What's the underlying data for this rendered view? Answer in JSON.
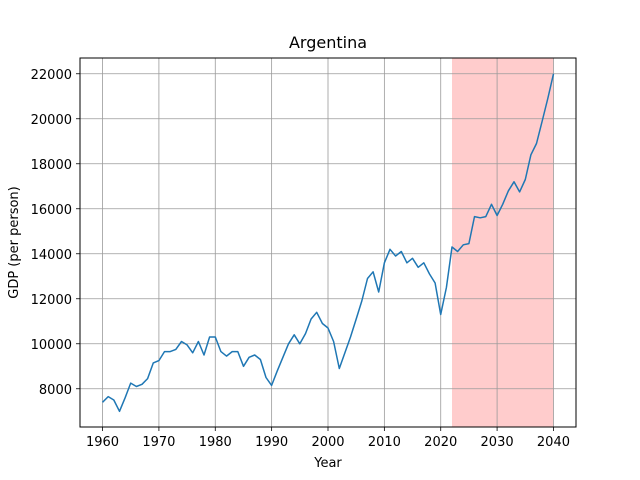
{
  "chart_data": {
    "type": "line",
    "title": "Argentina",
    "xlabel": "Year",
    "ylabel": "GDP (per person)",
    "xlim": [
      1956,
      2044
    ],
    "ylim": [
      6300,
      22700
    ],
    "xticks": [
      1960,
      1970,
      1980,
      1990,
      2000,
      2010,
      2020,
      2030,
      2040
    ],
    "yticks": [
      8000,
      10000,
      12000,
      14000,
      16000,
      18000,
      20000,
      22000
    ],
    "grid": true,
    "line_color": "#1f77b4",
    "forecast_region": {
      "x_start": 2022,
      "x_end": 2040,
      "color": "#ffcccc"
    },
    "series": [
      {
        "x": [
          1960,
          1961,
          1962,
          1963,
          1964,
          1965,
          1966,
          1967,
          1968,
          1969,
          1970,
          1971,
          1972,
          1973,
          1974,
          1975,
          1976,
          1977,
          1978,
          1979,
          1980,
          1981,
          1982,
          1983,
          1984,
          1985,
          1986,
          1987,
          1988,
          1989,
          1990,
          1991,
          1992,
          1993,
          1994,
          1995,
          1996,
          1997,
          1998,
          1999,
          2000,
          2001,
          2002,
          2003,
          2004,
          2005,
          2006,
          2007,
          2008,
          2009,
          2010,
          2011,
          2012,
          2013,
          2014,
          2015,
          2016,
          2017,
          2018,
          2019,
          2020,
          2021,
          2022,
          2023,
          2024,
          2025,
          2026,
          2027,
          2028,
          2029,
          2030,
          2031,
          2032,
          2033,
          2034,
          2035,
          2036,
          2037,
          2038,
          2039,
          2040
        ],
        "values": [
          7400,
          7650,
          7500,
          7000,
          7600,
          8250,
          8100,
          8200,
          8450,
          9150,
          9250,
          9650,
          9650,
          9750,
          10100,
          9950,
          9600,
          10100,
          9500,
          10300,
          10300,
          9650,
          9450,
          9650,
          9650,
          9000,
          9400,
          9500,
          9300,
          8500,
          8150,
          8800,
          9400,
          10000,
          10400,
          10000,
          10450,
          11100,
          11400,
          10900,
          10700,
          10100,
          8900,
          9600,
          10300,
          11100,
          11900,
          12900,
          13200,
          12300,
          13600,
          14200,
          13900,
          14100,
          13600,
          13800,
          13400,
          13600,
          13100,
          12700,
          11300,
          12500,
          14300,
          14100,
          14400,
          14450,
          15650,
          15600,
          15650,
          16200,
          15700,
          16200,
          16800,
          17200,
          16750,
          17300,
          18400,
          18900,
          19900,
          20900,
          22000
        ]
      }
    ]
  }
}
